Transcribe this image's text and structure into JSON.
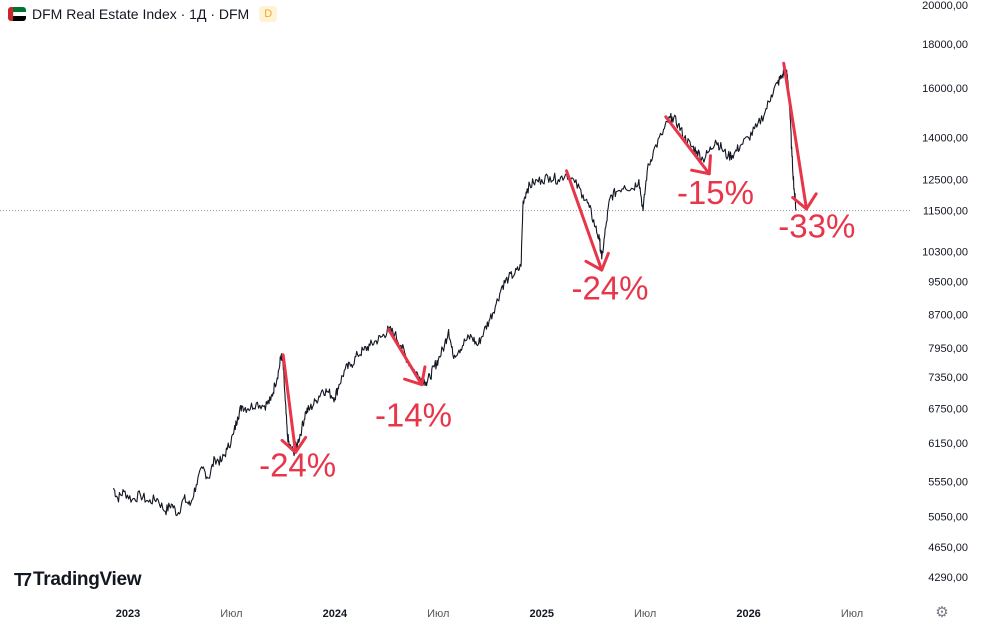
{
  "header": {
    "title": "DFM Real Estate Index · 1Д · DFM",
    "badge": "D",
    "flag_colors": {
      "red": "#cc2229",
      "green": "#00732f",
      "white": "#ffffff",
      "black": "#000000"
    }
  },
  "branding": {
    "logo_text": "TradingView"
  },
  "icons": {
    "settings": "settings-icon"
  },
  "colors": {
    "price_line": "#131722",
    "annotation": "#e8354a",
    "axis_text": "#787b86",
    "last_price_line": "#9598a1"
  },
  "chart_data": {
    "type": "line",
    "title": "DFM Real Estate Index · 1Д · DFM",
    "scale": "log",
    "ylim": [
      4050,
      20500
    ],
    "y_ticks": [
      20000,
      18000,
      16000,
      14000,
      12500,
      11500,
      10300,
      9500,
      8700,
      7950,
      7350,
      6750,
      6150,
      5550,
      5050,
      4650,
      4290
    ],
    "y_tick_labels": [
      "20000,00",
      "18000,00",
      "16000,00",
      "14000,00",
      "12500,00",
      "11500,00",
      "10300,00",
      "9500,00",
      "8700,00",
      "7950,00",
      "7350,00",
      "6750,00",
      "6150,00",
      "5550,00",
      "5050,00",
      "4650,00",
      "4290,00"
    ],
    "x_range": [
      2022.85,
      2026.85
    ],
    "x_ticks": [
      2023.0,
      2023.5,
      2024.0,
      2024.5,
      2025.0,
      2025.5,
      2026.0,
      2026.5
    ],
    "x_tick_labels": [
      "2023",
      "Июл",
      "2024",
      "Июл",
      "2025",
      "Июл",
      "2026",
      "Июл"
    ],
    "last_price": 11500,
    "series": [
      {
        "name": "DFM Real Estate Index",
        "points": [
          [
            2022.93,
            5450
          ],
          [
            2022.95,
            5300
          ],
          [
            2022.98,
            5400
          ],
          [
            2023.02,
            5280
          ],
          [
            2023.06,
            5350
          ],
          [
            2023.1,
            5250
          ],
          [
            2023.14,
            5300
          ],
          [
            2023.18,
            5120
          ],
          [
            2023.21,
            5220
          ],
          [
            2023.24,
            5080
          ],
          [
            2023.27,
            5300
          ],
          [
            2023.3,
            5200
          ],
          [
            2023.33,
            5500
          ],
          [
            2023.36,
            5750
          ],
          [
            2023.39,
            5600
          ],
          [
            2023.42,
            5900
          ],
          [
            2023.45,
            5850
          ],
          [
            2023.48,
            6050
          ],
          [
            2023.51,
            6300
          ],
          [
            2023.53,
            6600
          ],
          [
            2023.55,
            6800
          ],
          [
            2023.58,
            6750
          ],
          [
            2023.62,
            6850
          ],
          [
            2023.66,
            6800
          ],
          [
            2023.69,
            6900
          ],
          [
            2023.71,
            7200
          ],
          [
            2023.73,
            7500
          ],
          [
            2023.74,
            7800
          ],
          [
            2023.75,
            7600
          ],
          [
            2023.76,
            6900
          ],
          [
            2023.77,
            6300
          ],
          [
            2023.78,
            6100
          ],
          [
            2023.8,
            6000
          ],
          [
            2023.82,
            6150
          ],
          [
            2023.84,
            6400
          ],
          [
            2023.86,
            6700
          ],
          [
            2023.88,
            6750
          ],
          [
            2023.91,
            6900
          ],
          [
            2023.94,
            7100
          ],
          [
            2023.97,
            7050
          ],
          [
            2024.0,
            6950
          ],
          [
            2024.02,
            7200
          ],
          [
            2024.05,
            7500
          ],
          [
            2024.08,
            7600
          ],
          [
            2024.11,
            7800
          ],
          [
            2024.14,
            7900
          ],
          [
            2024.17,
            8000
          ],
          [
            2024.2,
            8100
          ],
          [
            2024.23,
            8200
          ],
          [
            2024.26,
            8350
          ],
          [
            2024.29,
            8250
          ],
          [
            2024.32,
            8000
          ],
          [
            2024.35,
            7700
          ],
          [
            2024.38,
            7500
          ],
          [
            2024.41,
            7350
          ],
          [
            2024.44,
            7250
          ],
          [
            2024.46,
            7350
          ],
          [
            2024.48,
            7550
          ],
          [
            2024.5,
            7700
          ],
          [
            2024.53,
            8000
          ],
          [
            2024.55,
            8350
          ],
          [
            2024.57,
            7800
          ],
          [
            2024.6,
            7900
          ],
          [
            2024.63,
            8100
          ],
          [
            2024.66,
            8200
          ],
          [
            2024.69,
            8000
          ],
          [
            2024.72,
            8300
          ],
          [
            2024.75,
            8600
          ],
          [
            2024.78,
            8950
          ],
          [
            2024.81,
            9400
          ],
          [
            2024.84,
            9600
          ],
          [
            2024.87,
            9700
          ],
          [
            2024.9,
            9900
          ],
          [
            2024.91,
            11800
          ],
          [
            2024.93,
            12200
          ],
          [
            2024.96,
            12400
          ],
          [
            2025.0,
            12500
          ],
          [
            2025.04,
            12600
          ],
          [
            2025.08,
            12500
          ],
          [
            2025.12,
            12700
          ],
          [
            2025.16,
            12400
          ],
          [
            2025.2,
            12000
          ],
          [
            2025.23,
            11600
          ],
          [
            2025.26,
            11000
          ],
          [
            2025.28,
            10600
          ],
          [
            2025.29,
            10100
          ],
          [
            2025.31,
            11000
          ],
          [
            2025.33,
            11900
          ],
          [
            2025.36,
            12100
          ],
          [
            2025.4,
            12300
          ],
          [
            2025.44,
            12200
          ],
          [
            2025.47,
            12500
          ],
          [
            2025.49,
            11500
          ],
          [
            2025.51,
            12800
          ],
          [
            2025.54,
            13500
          ],
          [
            2025.58,
            14100
          ],
          [
            2025.61,
            14600
          ],
          [
            2025.63,
            14800
          ],
          [
            2025.66,
            14500
          ],
          [
            2025.69,
            14000
          ],
          [
            2025.72,
            13700
          ],
          [
            2025.75,
            13500
          ],
          [
            2025.78,
            13200
          ],
          [
            2025.81,
            13500
          ],
          [
            2025.84,
            13900
          ],
          [
            2025.87,
            13600
          ],
          [
            2025.9,
            13300
          ],
          [
            2025.93,
            13400
          ],
          [
            2025.96,
            13700
          ],
          [
            2026.0,
            14000
          ],
          [
            2026.04,
            14400
          ],
          [
            2026.08,
            15000
          ],
          [
            2026.11,
            15700
          ],
          [
            2026.14,
            16200
          ],
          [
            2026.16,
            16500
          ],
          [
            2026.18,
            16800
          ],
          [
            2026.19,
            16300
          ],
          [
            2026.2,
            15000
          ],
          [
            2026.21,
            13300
          ],
          [
            2026.22,
            12200
          ],
          [
            2026.23,
            11500
          ]
        ]
      }
    ],
    "annotations": [
      {
        "label": "-24%",
        "arrow_from": [
          2023.75,
          7800
        ],
        "arrow_to": [
          2023.81,
          6000
        ],
        "label_pos": [
          2023.82,
          5620
        ]
      },
      {
        "label": "-14%",
        "arrow_from": [
          2024.26,
          8350
        ],
        "arrow_to": [
          2024.42,
          7200
        ],
        "label_pos": [
          2024.38,
          6430
        ]
      },
      {
        "label": "-24%",
        "arrow_from": [
          2025.12,
          12800
        ],
        "arrow_to": [
          2025.29,
          9800
        ],
        "label_pos": [
          2025.33,
          9050
        ]
      },
      {
        "label": "-15%",
        "arrow_from": [
          2025.6,
          14800
        ],
        "arrow_to": [
          2025.81,
          12700
        ],
        "label_pos": [
          2025.84,
          11700
        ]
      },
      {
        "label": "-33%",
        "arrow_from": [
          2026.17,
          17100
        ],
        "arrow_to": [
          2026.28,
          11550
        ],
        "label_pos": [
          2026.33,
          10700
        ]
      }
    ]
  }
}
